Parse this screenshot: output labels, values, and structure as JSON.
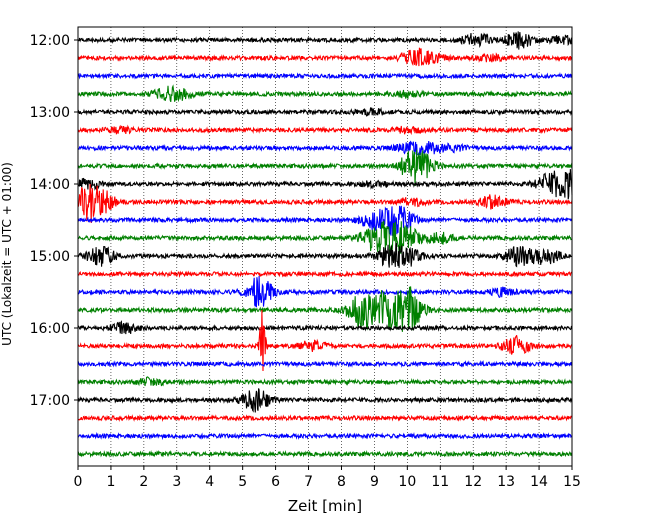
{
  "chart_data": {
    "type": "line",
    "title": "",
    "xlabel": "Zeit  [min]",
    "ylabel": "UTC (Lokalzeit = UTC + 01:00)",
    "xlim": [
      0,
      15
    ],
    "x_ticks": [
      "0",
      "1",
      "2",
      "3",
      "4",
      "5",
      "6",
      "7",
      "8",
      "9",
      "10",
      "11",
      "12",
      "13",
      "14",
      "15"
    ],
    "y_ticks": [
      "12:00",
      "13:00",
      "14:00",
      "15:00",
      "16:00",
      "17:00"
    ],
    "trace_interval_min": 15,
    "grid": "vertical dotted every minute",
    "legend": "none",
    "colors": [
      "#000000",
      "#ff0000",
      "#0000ff",
      "#008000"
    ],
    "traces": [
      {
        "start": "12:00",
        "color": "#000000",
        "events": [
          [
            12.1,
            7
          ],
          [
            13.4,
            9
          ],
          [
            14.7,
            4
          ]
        ]
      },
      {
        "start": "12:15",
        "color": "#ff0000",
        "events": [
          [
            10.2,
            8
          ],
          [
            10.7,
            5
          ],
          [
            12.5,
            3
          ]
        ]
      },
      {
        "start": "12:30",
        "color": "#0000ff",
        "events": []
      },
      {
        "start": "12:45",
        "color": "#008000",
        "events": [
          [
            2.7,
            6
          ],
          [
            3.2,
            4
          ],
          [
            10.0,
            3
          ]
        ]
      },
      {
        "start": "13:00",
        "color": "#000000",
        "events": [
          [
            8.9,
            3
          ]
        ]
      },
      {
        "start": "13:15",
        "color": "#ff0000",
        "events": [
          [
            1.3,
            3
          ],
          [
            10.0,
            3
          ]
        ]
      },
      {
        "start": "13:30",
        "color": "#0000ff",
        "events": [
          [
            10.0,
            4
          ],
          [
            10.6,
            6
          ],
          [
            11.4,
            3
          ]
        ]
      },
      {
        "start": "13:45",
        "color": "#008000",
        "events": [
          [
            10.2,
            18
          ],
          [
            10.5,
            6
          ]
        ]
      },
      {
        "start": "14:00",
        "color": "#000000",
        "events": [
          [
            0.3,
            5
          ],
          [
            9.0,
            3
          ],
          [
            14.3,
            10
          ],
          [
            14.9,
            14
          ]
        ]
      },
      {
        "start": "14:15",
        "color": "#ff0000",
        "events": [
          [
            0.3,
            17
          ],
          [
            0.7,
            11
          ],
          [
            10.1,
            4
          ],
          [
            12.6,
            7
          ]
        ]
      },
      {
        "start": "14:30",
        "color": "#0000ff",
        "events": [
          [
            8.9,
            7
          ],
          [
            9.4,
            9
          ],
          [
            9.8,
            12
          ]
        ]
      },
      {
        "start": "14:45",
        "color": "#008000",
        "events": [
          [
            9.0,
            14
          ],
          [
            9.6,
            16
          ],
          [
            10.0,
            10
          ],
          [
            11.0,
            6
          ]
        ]
      },
      {
        "start": "15:00",
        "color": "#000000",
        "events": [
          [
            0.7,
            10
          ],
          [
            9.5,
            12
          ],
          [
            10.1,
            9
          ],
          [
            13.4,
            11
          ],
          [
            14.2,
            9
          ]
        ]
      },
      {
        "start": "15:15",
        "color": "#ff0000",
        "events": []
      },
      {
        "start": "15:30",
        "color": "#0000ff",
        "events": [
          [
            5.5,
            16
          ],
          [
            12.9,
            4
          ]
        ]
      },
      {
        "start": "15:45",
        "color": "#008000",
        "events": [
          [
            8.6,
            18
          ],
          [
            9.2,
            16
          ],
          [
            9.8,
            18
          ],
          [
            10.1,
            14
          ]
        ]
      },
      {
        "start": "16:00",
        "color": "#000000",
        "events": [
          [
            1.4,
            6
          ]
        ]
      },
      {
        "start": "16:15",
        "color": "#ff0000",
        "events": [
          [
            5.6,
            40
          ],
          [
            7.1,
            5
          ],
          [
            13.3,
            10
          ]
        ]
      },
      {
        "start": "16:30",
        "color": "#0000ff",
        "events": []
      },
      {
        "start": "16:45",
        "color": "#008000",
        "events": [
          [
            2.2,
            4
          ]
        ]
      },
      {
        "start": "17:00",
        "color": "#000000",
        "events": [
          [
            5.4,
            12
          ]
        ]
      },
      {
        "start": "17:15",
        "color": "#ff0000",
        "events": []
      },
      {
        "start": "17:30",
        "color": "#0000ff",
        "events": []
      },
      {
        "start": "17:45",
        "color": "#008000",
        "events": []
      }
    ]
  }
}
